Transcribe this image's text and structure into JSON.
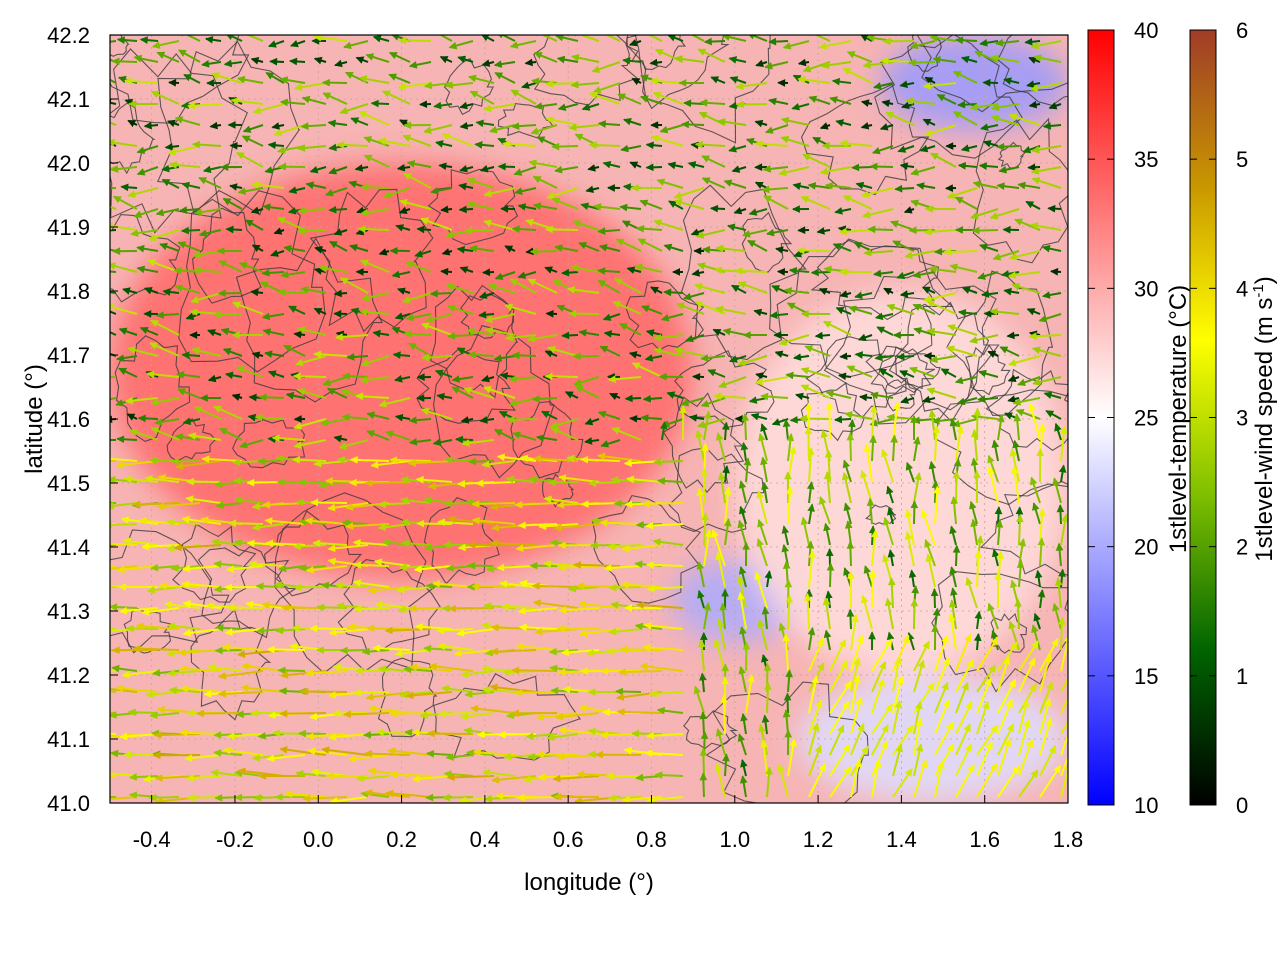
{
  "chart_data": {
    "type": "heatmap",
    "title": "",
    "xlabel": "longitude (°)",
    "ylabel": "latitude (°)",
    "xlim": [
      -0.5,
      1.8
    ],
    "ylim": [
      41.0,
      42.2
    ],
    "x_ticks": [
      -0.4,
      -0.2,
      0.0,
      0.2,
      0.4,
      0.6,
      0.8,
      1.0,
      1.2,
      1.4,
      1.6,
      1.8
    ],
    "x_tick_labels": [
      "-0.4",
      "-0.2",
      "0.0",
      "0.2",
      "0.4",
      "0.6",
      "0.8",
      "1.0",
      "1.2",
      "1.4",
      "1.6",
      "1.8"
    ],
    "y_ticks": [
      41.0,
      41.1,
      41.2,
      41.3,
      41.4,
      41.5,
      41.6,
      41.7,
      41.8,
      41.9,
      42.0,
      42.1,
      42.2
    ],
    "y_tick_labels": [
      "41.0",
      "41.1",
      "41.2",
      "41.3",
      "41.4",
      "41.5",
      "41.6",
      "41.7",
      "41.8",
      "41.9",
      "42.0",
      "42.1",
      "42.2"
    ],
    "grid": true,
    "layers": [
      {
        "name": "1stlevel-temperature",
        "kind": "color-field"
      },
      {
        "name": "1stlevel-wind speed",
        "kind": "vector-field"
      },
      {
        "kind": "contour-lines"
      }
    ],
    "colorbars": [
      {
        "label": "1stlevel-temperature (°C)",
        "range": [
          10,
          40
        ],
        "ticks": [
          10,
          15,
          20,
          25,
          30,
          35,
          40
        ],
        "tick_labels": [
          "10",
          "15",
          "20",
          "25",
          "30",
          "35",
          "40"
        ],
        "colors": [
          "#0000ff",
          "#ffffff",
          "#ff0000"
        ]
      },
      {
        "label_main": "1stlevel-wind speed (m s",
        "label_sup": "-1",
        "label_end": ")",
        "range": [
          0,
          6
        ],
        "ticks": [
          0,
          1,
          2,
          3,
          4,
          5,
          6
        ],
        "tick_labels": [
          "0",
          "1",
          "2",
          "3",
          "4",
          "5",
          "6"
        ],
        "colors": [
          "#000000",
          "#006400",
          "#7fbf00",
          "#ffff00",
          "#c89600",
          "#a03c28"
        ]
      }
    ],
    "field_regions": {
      "warm_core": {
        "lon": [
          -0.5,
          0.9
        ],
        "lat": [
          41.35,
          42.0
        ],
        "temperature": 34
      },
      "cool_patch_northeast": {
        "lon": [
          1.35,
          1.8
        ],
        "lat": [
          42.05,
          42.2
        ],
        "temperature": 19
      },
      "cool_patch_center": {
        "lon": [
          0.85,
          1.15
        ],
        "lat": [
          41.25,
          41.38
        ],
        "temperature": 20
      },
      "cool_band_southeast": {
        "lon": [
          1.15,
          1.8
        ],
        "lat": [
          41.0,
          41.2
        ],
        "temperature": 23
      },
      "mild_east": {
        "lon": [
          1.0,
          1.8
        ],
        "lat": [
          41.2,
          41.8
        ],
        "temperature": 27
      }
    }
  }
}
